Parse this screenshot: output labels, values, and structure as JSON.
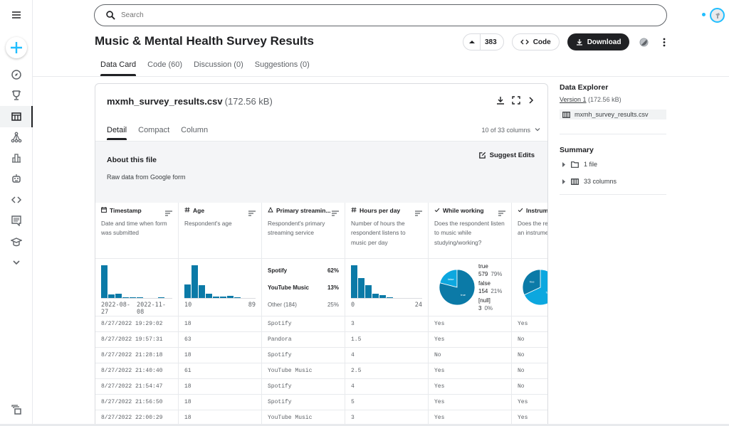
{
  "app": {
    "search_placeholder": "Search",
    "sidebar": {
      "items": [
        {
          "name": "menu-icon"
        },
        {
          "name": "create-icon"
        },
        {
          "name": "compass-icon",
          "label": "Home"
        },
        {
          "name": "trophy-icon",
          "label": "Competitions"
        },
        {
          "name": "table-icon",
          "label": "Datasets",
          "active": true
        },
        {
          "name": "models-icon",
          "label": "Models"
        },
        {
          "name": "bar-chart-icon",
          "label": "Benchmarks"
        },
        {
          "name": "robot-icon",
          "label": "Game Arena"
        },
        {
          "name": "code-icon",
          "label": "Code"
        },
        {
          "name": "comments-icon",
          "label": "Discussions"
        },
        {
          "name": "graduation-cap-icon",
          "label": "Learn"
        },
        {
          "name": "chevron-down-icon",
          "label": "More"
        },
        {
          "name": "copy-icon",
          "label": "Your Work"
        }
      ]
    }
  },
  "dataset": {
    "title": "Music & Mental Health Survey Results",
    "upvotes": "383",
    "code_label": "Code",
    "download_label": "Download",
    "tabs": [
      {
        "label": "Data Card",
        "active": true
      },
      {
        "label": "Code (60)"
      },
      {
        "label": "Discussion (0)"
      },
      {
        "label": "Suggestions (0)"
      }
    ]
  },
  "file": {
    "name": "mxmh_survey_results.csv",
    "size": "(172.56 kB)",
    "tabs": [
      {
        "label": "Detail",
        "active": true
      },
      {
        "label": "Compact"
      },
      {
        "label": "Column"
      }
    ],
    "column_count": "10 of 33 columns",
    "about_title": "About this file",
    "about_text": "Raw data from Google form",
    "suggest_edits": "Suggest Edits"
  },
  "columns": [
    {
      "type_icon": "calendar-icon",
      "name": "Timestamp",
      "description": "Date and time when form was submitted",
      "viz": {
        "kind": "histogram",
        "bars": [
          1.0,
          0.1,
          0.12,
          0.03,
          0.01,
          0.03,
          0.0,
          0.0,
          0.01,
          0.0
        ],
        "min": "2022-08-27",
        "max": "2022-11-08"
      }
    },
    {
      "type_icon": "hash-icon",
      "name": "Age",
      "description": "Respondent's age",
      "viz": {
        "kind": "histogram",
        "bars": [
          0.42,
          1.0,
          0.4,
          0.12,
          0.05,
          0.04,
          0.06,
          0.02,
          0.0,
          0.0
        ],
        "min": "10",
        "max": "89"
      }
    },
    {
      "type_icon": "category-icon",
      "name": "Primary streamin...",
      "description": "Respondent's primary streaming service",
      "viz": {
        "kind": "categories",
        "items": [
          {
            "label": "Spotify",
            "pct": "62%"
          },
          {
            "label": "YouTube Music",
            "pct": "13%"
          },
          {
            "label": "Other (184)",
            "pct": "25%"
          }
        ]
      }
    },
    {
      "type_icon": "hash-icon",
      "name": "Hours per day",
      "description": "Number of hours the respondent listens to music per day",
      "viz": {
        "kind": "histogram",
        "bars": [
          1.0,
          0.6,
          0.4,
          0.13,
          0.08,
          0.03,
          0.0,
          0.0,
          0.0,
          0.0
        ],
        "min": "0",
        "max": "24"
      }
    },
    {
      "type_icon": "check-icon",
      "name": "While working",
      "description": "Does the respondent listen to music while studying/working?",
      "viz": {
        "kind": "pie",
        "slices": [
          {
            "label": "true",
            "count": "579",
            "pct": "79%",
            "value": 79
          },
          {
            "label": "false",
            "count": "154",
            "pct": "21%",
            "value": 21
          },
          {
            "label": "[null]",
            "count": "3",
            "pct": "0%",
            "value": 0
          }
        ]
      }
    },
    {
      "type_icon": "check-icon",
      "name": "Instrumentalist",
      "description": "Does the respondent play an instrument regularly?",
      "viz": {
        "kind": "pie",
        "slices": [
          {
            "label": "false",
            "value": 68
          },
          {
            "label": "true",
            "value": 32
          }
        ]
      }
    }
  ],
  "rows": [
    [
      "8/27/2022 19:29:02",
      "18",
      "Spotify",
      "3",
      "Yes",
      "Yes"
    ],
    [
      "8/27/2022 19:57:31",
      "63",
      "Pandora",
      "1.5",
      "Yes",
      "No"
    ],
    [
      "8/27/2022 21:28:18",
      "18",
      "Spotify",
      "4",
      "No",
      "No"
    ],
    [
      "8/27/2022 21:40:40",
      "61",
      "YouTube Music",
      "2.5",
      "Yes",
      "No"
    ],
    [
      "8/27/2022 21:54:47",
      "18",
      "Spotify",
      "4",
      "Yes",
      "No"
    ],
    [
      "8/27/2022 21:56:50",
      "18",
      "Spotify",
      "5",
      "Yes",
      "Yes"
    ],
    [
      "8/27/2022 22:00:29",
      "18",
      "YouTube Music",
      "3",
      "Yes",
      "Yes"
    ]
  ],
  "explorer": {
    "title": "Data Explorer",
    "version_link": "Version 1",
    "version_size": "(172.56 kB)",
    "file": "mxmh_survey_results.csv",
    "summary_title": "Summary",
    "summary_items": [
      "1 file",
      "33 columns"
    ]
  },
  "colors": {
    "accent": "#20beff",
    "bar": "#0b7aa7",
    "pie_light": "#0ca7df"
  }
}
